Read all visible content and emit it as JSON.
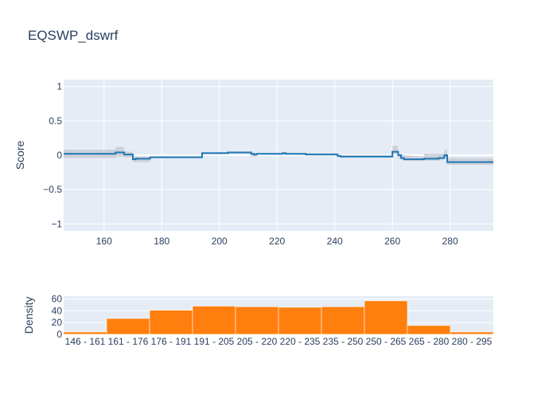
{
  "title": "EQSWP_dswrf",
  "chart_data": [
    {
      "type": "line",
      "ylabel": "Score",
      "xlim": [
        146,
        295
      ],
      "ylim": [
        -1.1,
        1.1
      ],
      "x_ticks": [
        160,
        180,
        200,
        220,
        240,
        260,
        280
      ],
      "y_ticks": [
        1,
        0.5,
        0,
        -0.5,
        -1
      ],
      "y_tick_labels": [
        "1",
        "0.5",
        "0",
        "−0.5",
        "−1"
      ],
      "grid": true,
      "step_points": [
        [
          146,
          0.02
        ],
        [
          164,
          0.02
        ],
        [
          164,
          0.04
        ],
        [
          167,
          0.04
        ],
        [
          167,
          0.01
        ],
        [
          170,
          0.01
        ],
        [
          170,
          -0.06
        ],
        [
          171,
          -0.06
        ],
        [
          171,
          -0.05
        ],
        [
          176,
          -0.05
        ],
        [
          176,
          -0.03
        ],
        [
          194,
          -0.03
        ],
        [
          194,
          0.03
        ],
        [
          203,
          0.03
        ],
        [
          203,
          0.04
        ],
        [
          211,
          0.04
        ],
        [
          211,
          0.02
        ],
        [
          212,
          0.02
        ],
        [
          212,
          0.01
        ],
        [
          213,
          0.01
        ],
        [
          213,
          0.02
        ],
        [
          222,
          0.02
        ],
        [
          222,
          0.03
        ],
        [
          223,
          0.03
        ],
        [
          223,
          0.02
        ],
        [
          230,
          0.02
        ],
        [
          230,
          0.01
        ],
        [
          241,
          0.01
        ],
        [
          241,
          -0.01
        ],
        [
          242,
          -0.01
        ],
        [
          242,
          -0.02
        ],
        [
          260,
          -0.02
        ],
        [
          260,
          0.05
        ],
        [
          262,
          0.05
        ],
        [
          262,
          0.0
        ],
        [
          263,
          0.0
        ],
        [
          263,
          -0.04
        ],
        [
          264,
          -0.04
        ],
        [
          264,
          -0.06
        ],
        [
          271,
          -0.06
        ],
        [
          271,
          -0.05
        ],
        [
          276,
          -0.05
        ],
        [
          276,
          -0.04
        ],
        [
          278,
          -0.04
        ],
        [
          278,
          0.0
        ],
        [
          279,
          0.0
        ],
        [
          279,
          -0.1
        ],
        [
          295,
          -0.1
        ]
      ],
      "band_points": [
        [
          146,
          0.08,
          -0.04
        ],
        [
          164,
          0.08,
          -0.04
        ],
        [
          164,
          0.12,
          -0.02
        ],
        [
          167,
          0.12,
          -0.02
        ],
        [
          167,
          0.05,
          -0.03
        ],
        [
          170,
          0.05,
          -0.03
        ],
        [
          170,
          -0.02,
          -0.1
        ],
        [
          176,
          -0.02,
          -0.1
        ],
        [
          176,
          -0.02,
          -0.04
        ],
        [
          194,
          -0.02,
          -0.04
        ],
        [
          194,
          0.04,
          0.02
        ],
        [
          211,
          0.05,
          0.02
        ],
        [
          211,
          0.03,
          -0.02
        ],
        [
          213,
          0.03,
          -0.02
        ],
        [
          213,
          0.03,
          0.01
        ],
        [
          241,
          0.03,
          0.0
        ],
        [
          241,
          0.0,
          -0.03
        ],
        [
          260,
          0.0,
          -0.03
        ],
        [
          260,
          0.14,
          0.02
        ],
        [
          262,
          0.14,
          0.02
        ],
        [
          262,
          0.02,
          -0.04
        ],
        [
          264,
          0.0,
          -0.08
        ],
        [
          271,
          -0.02,
          -0.08
        ],
        [
          271,
          0.02,
          -0.08
        ],
        [
          276,
          0.02,
          -0.08
        ],
        [
          276,
          0.02,
          -0.08
        ],
        [
          278,
          0.02,
          -0.06
        ],
        [
          278,
          0.08,
          -0.04
        ],
        [
          279,
          0.08,
          -0.04
        ],
        [
          279,
          -0.04,
          -0.14
        ],
        [
          295,
          -0.04,
          -0.14
        ]
      ],
      "colors": {
        "line": "#1f77b4",
        "band": "#c9cdd3",
        "plot_bg": "#e5ecf6",
        "grid": "#ffffff"
      }
    },
    {
      "type": "bar",
      "ylabel": "Density",
      "ylim": [
        0,
        65
      ],
      "y_ticks": [
        0,
        20,
        40,
        60
      ],
      "categories": [
        "146 - 161",
        "161 - 176",
        "176 - 191",
        "191 - 205",
        "205 - 220",
        "220 - 235",
        "235 - 250",
        "250 - 265",
        "265 - 280",
        "280 - 295"
      ],
      "values": [
        4,
        27,
        41,
        48,
        47,
        46,
        47,
        57,
        15,
        4
      ],
      "grid": true,
      "colors": {
        "bar": "#ff7f0e",
        "plot_bg": "#e5ecf6",
        "grid": "#ffffff"
      }
    }
  ]
}
